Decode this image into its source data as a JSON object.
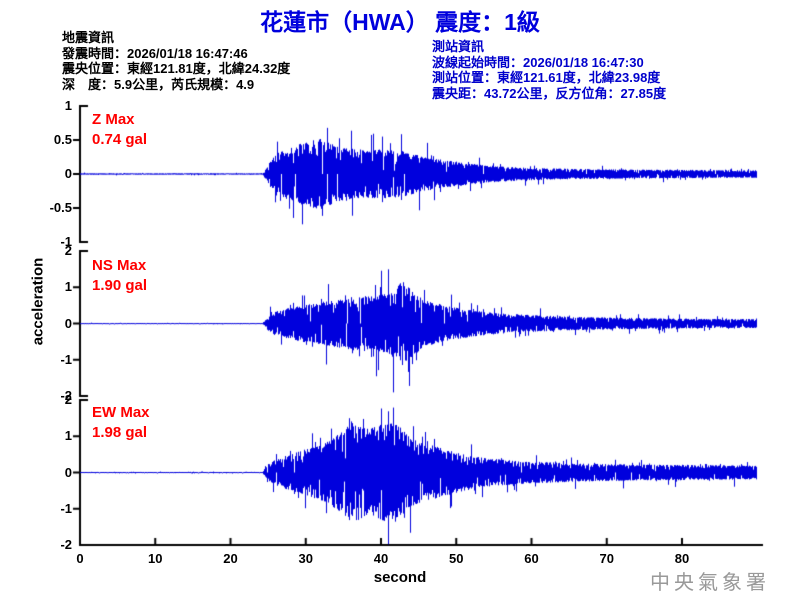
{
  "header": {
    "title": "花蓮市（HWA） 震度：1級",
    "quake_info": {
      "heading": "地震資訊",
      "origin_time": "發震時間：2026/01/18 16:47:46",
      "epicenter": "震央位置：東經121.81度，北緯24.32度",
      "depth_magnitude": "深　度：5.9公里，芮氏規模：4.9"
    },
    "station_info": {
      "heading": "測站資訊",
      "wave_start_time": "波線起始時間：2026/01/18 16:47:30",
      "station_location": "測站位置：東經121.61度，北緯23.98度",
      "distance_azimuth": "震央距：43.72公里，反方位角：27.85度"
    }
  },
  "watermark": "中央氣象署",
  "colors": {
    "title_blue": "#0000dd",
    "station_blue": "#0000cc",
    "max_red": "#ff0000",
    "trace_blue": "#0000dd",
    "axis_black": "#000000",
    "watermark_gray": "#999999"
  },
  "chart_data": {
    "type": "line",
    "title": "花蓮市（HWA） 震度：1級",
    "xlabel": "second",
    "ylabel": "acceleration",
    "x_range": [
      0,
      90.6
    ],
    "xticks": [
      0,
      10,
      20,
      30,
      40,
      50,
      60,
      70,
      80
    ],
    "line_color": "#0000dd",
    "event_onset_s": 25,
    "traces": [
      {
        "id": "Z",
        "label": "Z Max",
        "max_label": "0.74 gal",
        "max_gal": 0.74,
        "ylim": [
          -1,
          1
        ],
        "yticks": [
          1,
          0.5,
          0,
          -0.5,
          -1
        ],
        "seed": 7,
        "envelope": [
          [
            0,
            0.015
          ],
          [
            24.3,
            0.015
          ],
          [
            25,
            0.18
          ],
          [
            26,
            0.45
          ],
          [
            28,
            0.55
          ],
          [
            30,
            0.68
          ],
          [
            32,
            0.74
          ],
          [
            34,
            0.6
          ],
          [
            36,
            0.55
          ],
          [
            38,
            0.5
          ],
          [
            40,
            0.52
          ],
          [
            43,
            0.48
          ],
          [
            46,
            0.35
          ],
          [
            49,
            0.28
          ],
          [
            52,
            0.22
          ],
          [
            56,
            0.16
          ],
          [
            60,
            0.13
          ],
          [
            65,
            0.11
          ],
          [
            70,
            0.1
          ],
          [
            75,
            0.09
          ],
          [
            80,
            0.09
          ],
          [
            85,
            0.08
          ],
          [
            90,
            0.08
          ]
        ]
      },
      {
        "id": "NS",
        "label": "NS Max",
        "max_label": "1.90 gal",
        "max_gal": 1.9,
        "ylim": [
          -2,
          2
        ],
        "yticks": [
          2,
          1,
          0,
          -1,
          -2
        ],
        "seed": 13,
        "envelope": [
          [
            0,
            0.02
          ],
          [
            24.3,
            0.02
          ],
          [
            25,
            0.3
          ],
          [
            26,
            0.55
          ],
          [
            28,
            0.7
          ],
          [
            30,
            0.85
          ],
          [
            33,
            1.0
          ],
          [
            35,
            1.1
          ],
          [
            37,
            1.25
          ],
          [
            39,
            1.2
          ],
          [
            41,
            1.35
          ],
          [
            43,
            1.9
          ],
          [
            44,
            1.5
          ],
          [
            46,
            1.0
          ],
          [
            48,
            0.85
          ],
          [
            50,
            0.7
          ],
          [
            53,
            0.55
          ],
          [
            56,
            0.45
          ],
          [
            60,
            0.38
          ],
          [
            65,
            0.3
          ],
          [
            70,
            0.27
          ],
          [
            75,
            0.24
          ],
          [
            80,
            0.22
          ],
          [
            85,
            0.2
          ],
          [
            90,
            0.2
          ]
        ]
      },
      {
        "id": "EW",
        "label": "EW Max",
        "max_label": "1.98 gal",
        "max_gal": 1.98,
        "ylim": [
          -2,
          2
        ],
        "yticks": [
          2,
          1,
          0,
          -1,
          -2
        ],
        "seed": 21,
        "envelope": [
          [
            0,
            0.02
          ],
          [
            24.3,
            0.02
          ],
          [
            25,
            0.35
          ],
          [
            27,
            0.6
          ],
          [
            29,
            0.8
          ],
          [
            31,
            1.0
          ],
          [
            33,
            1.2
          ],
          [
            35,
            1.6
          ],
          [
            36,
            1.98
          ],
          [
            38,
            1.7
          ],
          [
            40,
            1.85
          ],
          [
            42,
            1.9
          ],
          [
            44,
            1.3
          ],
          [
            46,
            1.1
          ],
          [
            48,
            0.95
          ],
          [
            51,
            0.7
          ],
          [
            54,
            0.55
          ],
          [
            58,
            0.45
          ],
          [
            62,
            0.4
          ],
          [
            66,
            0.35
          ],
          [
            70,
            0.33
          ],
          [
            75,
            0.3
          ],
          [
            80,
            0.3
          ],
          [
            85,
            0.28
          ],
          [
            90,
            0.27
          ]
        ]
      }
    ]
  }
}
